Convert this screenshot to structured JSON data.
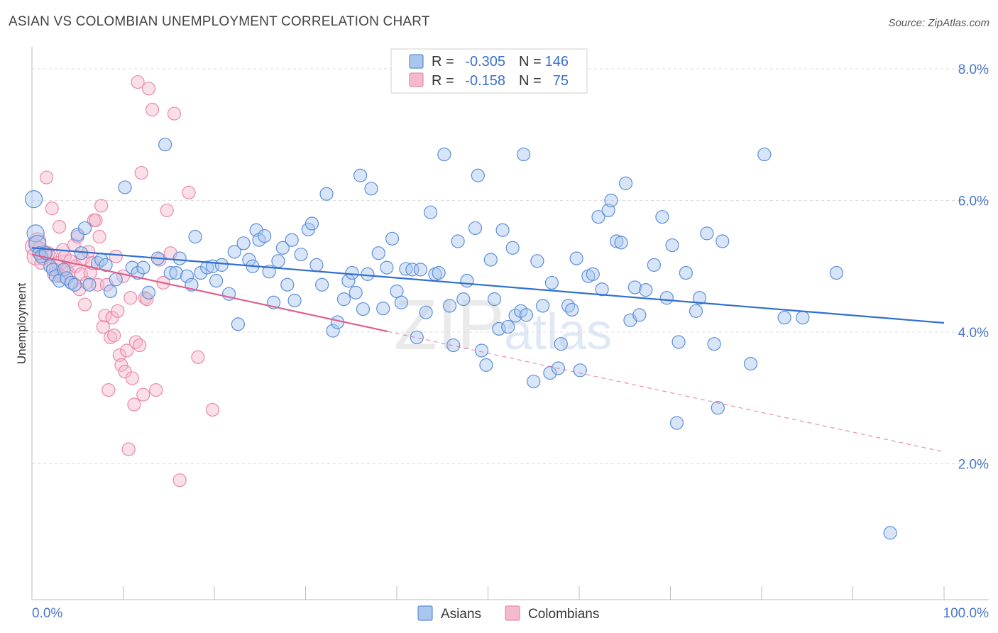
{
  "title": "ASIAN VS COLOMBIAN UNEMPLOYMENT CORRELATION CHART",
  "source": "Source: ZipAtlas.com",
  "watermark": {
    "zip": "ZIP",
    "atlas": "atlas"
  },
  "colors": {
    "blue_fill": "#a9c6ef",
    "blue_stroke": "#5b8fd8",
    "blue_line": "#2f6fd1",
    "pink_fill": "#f5b9cd",
    "pink_stroke": "#e88aaa",
    "pink_line": "#e0608a",
    "tick": "#4a78c8",
    "grid": "#dddddd"
  },
  "legend_top": {
    "rows": [
      {
        "r_label": "R =",
        "r_value": "-0.305",
        "n_label": "N =",
        "n_value": "146"
      },
      {
        "r_label": "R =",
        "r_value": "-0.158",
        "n_label": "N =",
        "n_value": "75"
      }
    ]
  },
  "chart_data": {
    "type": "scatter",
    "title": "ASIAN VS COLOMBIAN UNEMPLOYMENT CORRELATION CHART",
    "xlabel": "",
    "ylabel": "Unemployment",
    "xlim": [
      0,
      100
    ],
    "ylim": [
      0,
      8.5
    ],
    "x_tick_labels": [
      "0.0%",
      "100.0%"
    ],
    "y_ticks": [
      2.0,
      4.0,
      6.0,
      8.0
    ],
    "y_tick_labels": [
      "2.0%",
      "4.0%",
      "6.0%",
      "8.0%"
    ],
    "grid": true,
    "legend": "bottom-center",
    "series": [
      {
        "name": "Asians",
        "color": "#5b8fd8",
        "trend": {
          "x": [
            0,
            100
          ],
          "y": [
            5.28,
            4.14
          ],
          "style": "solid"
        },
        "points": [
          [
            0.2,
            6.02
          ],
          [
            0.4,
            5.5
          ],
          [
            0.6,
            5.34
          ],
          [
            0.8,
            5.2
          ],
          [
            1.0,
            5.15
          ],
          [
            1.5,
            5.2
          ],
          [
            2.0,
            5.0
          ],
          [
            2.3,
            4.95
          ],
          [
            2.6,
            4.85
          ],
          [
            3.0,
            4.78
          ],
          [
            3.5,
            4.95
          ],
          [
            3.8,
            4.82
          ],
          [
            4.3,
            4.75
          ],
          [
            4.7,
            4.72
          ],
          [
            5.0,
            5.48
          ],
          [
            5.4,
            5.2
          ],
          [
            5.8,
            5.58
          ],
          [
            6.3,
            4.72
          ],
          [
            7.2,
            5.05
          ],
          [
            7.6,
            5.1
          ],
          [
            8.1,
            5.02
          ],
          [
            8.6,
            4.62
          ],
          [
            9.2,
            4.8
          ],
          [
            10.2,
            6.2
          ],
          [
            11.0,
            4.98
          ],
          [
            11.6,
            4.9
          ],
          [
            12.2,
            4.98
          ],
          [
            12.8,
            4.6
          ],
          [
            13.8,
            5.12
          ],
          [
            14.6,
            6.85
          ],
          [
            15.2,
            4.9
          ],
          [
            15.8,
            4.9
          ],
          [
            16.2,
            5.12
          ],
          [
            17.0,
            4.85
          ],
          [
            17.5,
            4.72
          ],
          [
            17.9,
            5.45
          ],
          [
            18.5,
            4.9
          ],
          [
            19.2,
            4.98
          ],
          [
            19.8,
            5.0
          ],
          [
            20.2,
            4.78
          ],
          [
            20.8,
            5.02
          ],
          [
            21.6,
            4.58
          ],
          [
            22.2,
            5.22
          ],
          [
            22.6,
            4.12
          ],
          [
            23.2,
            5.35
          ],
          [
            23.8,
            5.1
          ],
          [
            24.2,
            5.0
          ],
          [
            24.6,
            5.55
          ],
          [
            24.9,
            5.4
          ],
          [
            25.5,
            5.46
          ],
          [
            26.0,
            4.92
          ],
          [
            26.5,
            4.45
          ],
          [
            27.0,
            5.08
          ],
          [
            27.5,
            5.28
          ],
          [
            28.0,
            4.72
          ],
          [
            28.5,
            5.4
          ],
          [
            28.8,
            4.48
          ],
          [
            29.5,
            5.18
          ],
          [
            30.3,
            5.56
          ],
          [
            30.7,
            5.65
          ],
          [
            31.2,
            5.02
          ],
          [
            31.8,
            4.72
          ],
          [
            32.3,
            6.1
          ],
          [
            33.0,
            4.02
          ],
          [
            33.5,
            4.15
          ],
          [
            34.2,
            4.5
          ],
          [
            34.7,
            4.78
          ],
          [
            35.1,
            4.9
          ],
          [
            35.5,
            4.6
          ],
          [
            36.0,
            6.38
          ],
          [
            36.3,
            4.35
          ],
          [
            36.8,
            4.88
          ],
          [
            37.2,
            6.18
          ],
          [
            38.0,
            5.2
          ],
          [
            38.5,
            4.36
          ],
          [
            38.9,
            4.98
          ],
          [
            39.5,
            5.42
          ],
          [
            40.0,
            4.62
          ],
          [
            40.5,
            4.45
          ],
          [
            41.0,
            4.96
          ],
          [
            41.7,
            4.95
          ],
          [
            42.2,
            3.92
          ],
          [
            42.6,
            4.95
          ],
          [
            43.2,
            4.3
          ],
          [
            43.7,
            5.82
          ],
          [
            44.2,
            4.88
          ],
          [
            44.6,
            4.9
          ],
          [
            45.2,
            6.7
          ],
          [
            45.8,
            4.4
          ],
          [
            46.2,
            3.8
          ],
          [
            46.7,
            5.38
          ],
          [
            47.3,
            4.5
          ],
          [
            47.7,
            4.78
          ],
          [
            48.6,
            5.58
          ],
          [
            48.9,
            6.38
          ],
          [
            49.3,
            3.72
          ],
          [
            49.8,
            3.5
          ],
          [
            50.3,
            5.1
          ],
          [
            50.7,
            4.5
          ],
          [
            51.2,
            4.05
          ],
          [
            51.6,
            5.55
          ],
          [
            52.2,
            4.08
          ],
          [
            52.7,
            5.28
          ],
          [
            53.0,
            4.25
          ],
          [
            53.6,
            4.32
          ],
          [
            53.9,
            6.7
          ],
          [
            54.2,
            4.26
          ],
          [
            55.0,
            3.25
          ],
          [
            55.4,
            5.08
          ],
          [
            56.0,
            4.4
          ],
          [
            56.8,
            3.38
          ],
          [
            57.0,
            4.75
          ],
          [
            57.7,
            3.45
          ],
          [
            58.0,
            3.82
          ],
          [
            58.8,
            4.4
          ],
          [
            59.2,
            4.34
          ],
          [
            59.7,
            5.12
          ],
          [
            60.1,
            3.42
          ],
          [
            61.0,
            4.85
          ],
          [
            61.5,
            4.88
          ],
          [
            62.1,
            5.75
          ],
          [
            62.5,
            4.65
          ],
          [
            63.2,
            5.85
          ],
          [
            63.5,
            6.0
          ],
          [
            64.1,
            5.38
          ],
          [
            64.6,
            5.36
          ],
          [
            65.1,
            6.26
          ],
          [
            65.6,
            4.18
          ],
          [
            66.1,
            4.68
          ],
          [
            66.6,
            4.26
          ],
          [
            67.3,
            4.64
          ],
          [
            68.2,
            5.02
          ],
          [
            69.1,
            5.75
          ],
          [
            69.6,
            4.52
          ],
          [
            70.2,
            5.32
          ],
          [
            70.7,
            2.62
          ],
          [
            70.9,
            3.85
          ],
          [
            71.7,
            4.9
          ],
          [
            72.8,
            4.32
          ],
          [
            73.2,
            4.52
          ],
          [
            74.0,
            5.5
          ],
          [
            74.8,
            3.82
          ],
          [
            75.2,
            2.85
          ],
          [
            75.7,
            5.38
          ],
          [
            78.8,
            3.52
          ],
          [
            80.3,
            6.7
          ],
          [
            82.5,
            4.22
          ],
          [
            84.5,
            4.22
          ],
          [
            88.2,
            4.9
          ],
          [
            94.1,
            0.95
          ]
        ]
      },
      {
        "name": "Colombians",
        "color": "#e88aaa",
        "trend": {
          "x": [
            0,
            100
          ],
          "y": [
            5.18,
            2.18
          ],
          "style": "solid-to-dashed",
          "solid_until_x": 39
        },
        "points": [
          [
            0.2,
            5.3
          ],
          [
            0.4,
            5.15
          ],
          [
            0.6,
            5.38
          ],
          [
            0.8,
            5.28
          ],
          [
            1.0,
            5.05
          ],
          [
            1.2,
            5.12
          ],
          [
            1.4,
            5.22
          ],
          [
            1.6,
            6.35
          ],
          [
            1.8,
            5.2
          ],
          [
            2.0,
            5.15
          ],
          [
            2.2,
            5.88
          ],
          [
            2.4,
            4.88
          ],
          [
            2.6,
            4.95
          ],
          [
            2.8,
            5.05
          ],
          [
            3.0,
            5.6
          ],
          [
            3.2,
            4.85
          ],
          [
            3.4,
            5.25
          ],
          [
            3.6,
            5.15
          ],
          [
            3.8,
            4.95
          ],
          [
            4.0,
            4.9
          ],
          [
            4.2,
            5.08
          ],
          [
            4.4,
            4.75
          ],
          [
            4.6,
            5.32
          ],
          [
            4.8,
            5.0
          ],
          [
            5.0,
            5.45
          ],
          [
            5.2,
            4.65
          ],
          [
            5.4,
            4.88
          ],
          [
            5.6,
            5.12
          ],
          [
            5.8,
            4.42
          ],
          [
            6.0,
            4.75
          ],
          [
            6.2,
            5.22
          ],
          [
            6.4,
            4.9
          ],
          [
            6.6,
            5.05
          ],
          [
            6.8,
            5.7
          ],
          [
            7.0,
            5.7
          ],
          [
            7.2,
            4.72
          ],
          [
            7.4,
            5.45
          ],
          [
            7.6,
            5.92
          ],
          [
            7.8,
            4.08
          ],
          [
            8.0,
            4.25
          ],
          [
            8.2,
            4.72
          ],
          [
            8.4,
            3.12
          ],
          [
            8.6,
            3.92
          ],
          [
            8.8,
            4.22
          ],
          [
            9.0,
            3.95
          ],
          [
            9.2,
            5.15
          ],
          [
            9.4,
            4.32
          ],
          [
            9.6,
            3.65
          ],
          [
            9.8,
            3.5
          ],
          [
            10.0,
            4.85
          ],
          [
            10.2,
            3.4
          ],
          [
            10.4,
            3.72
          ],
          [
            10.6,
            2.22
          ],
          [
            10.8,
            4.52
          ],
          [
            11.0,
            3.3
          ],
          [
            11.2,
            2.9
          ],
          [
            11.4,
            3.85
          ],
          [
            11.6,
            7.8
          ],
          [
            11.8,
            3.8
          ],
          [
            12.0,
            6.42
          ],
          [
            12.2,
            3.05
          ],
          [
            12.4,
            4.52
          ],
          [
            12.6,
            4.5
          ],
          [
            12.8,
            7.7
          ],
          [
            13.2,
            7.38
          ],
          [
            13.6,
            3.12
          ],
          [
            14.0,
            5.1
          ],
          [
            14.4,
            4.75
          ],
          [
            14.8,
            5.85
          ],
          [
            15.2,
            5.2
          ],
          [
            15.6,
            7.32
          ],
          [
            16.2,
            1.75
          ],
          [
            17.2,
            6.12
          ],
          [
            18.2,
            3.62
          ],
          [
            19.8,
            2.82
          ]
        ]
      }
    ]
  }
}
